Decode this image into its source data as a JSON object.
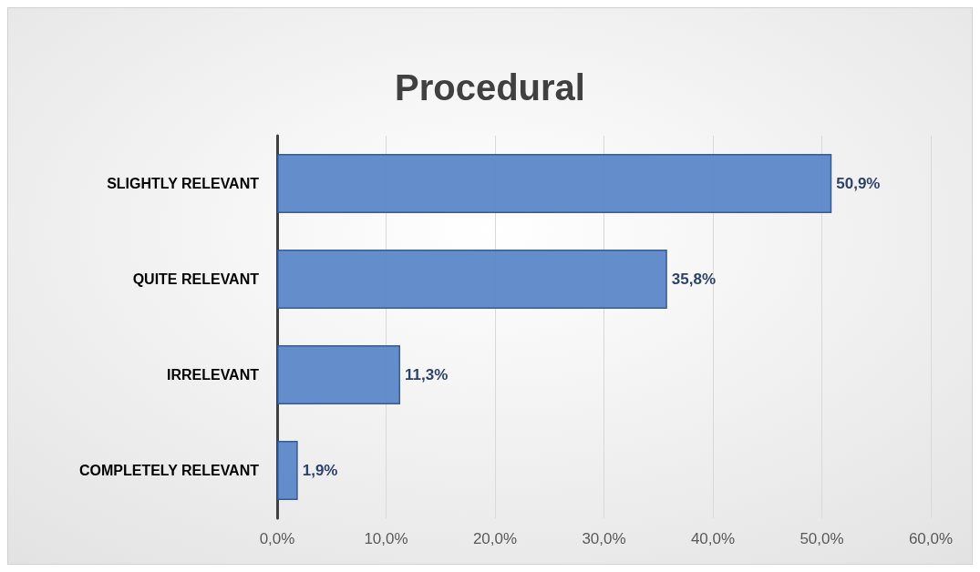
{
  "chart_data": {
    "type": "bar",
    "title": "Procedural",
    "orientation": "horizontal",
    "categories": [
      "SLIGHTLY RELEVANT",
      "QUITE RELEVANT",
      "IRRELEVANT",
      "COMPLETELY RELEVANT"
    ],
    "values": [
      50.9,
      35.8,
      11.3,
      1.9
    ],
    "value_labels": [
      "50,9%",
      "35,8%",
      "11,3%",
      "1,9%"
    ],
    "color": "#5b87c8",
    "xlim": [
      0,
      60
    ],
    "xticks": [
      {
        "value": 0,
        "label": "0,0%"
      },
      {
        "value": 10,
        "label": "10,0%"
      },
      {
        "value": 20,
        "label": "20,0%"
      },
      {
        "value": 30,
        "label": "30,0%"
      },
      {
        "value": 40,
        "label": "40,0%"
      },
      {
        "value": 50,
        "label": "50,0%"
      },
      {
        "value": 60,
        "label": "60,0%"
      }
    ],
    "grid": "x"
  }
}
